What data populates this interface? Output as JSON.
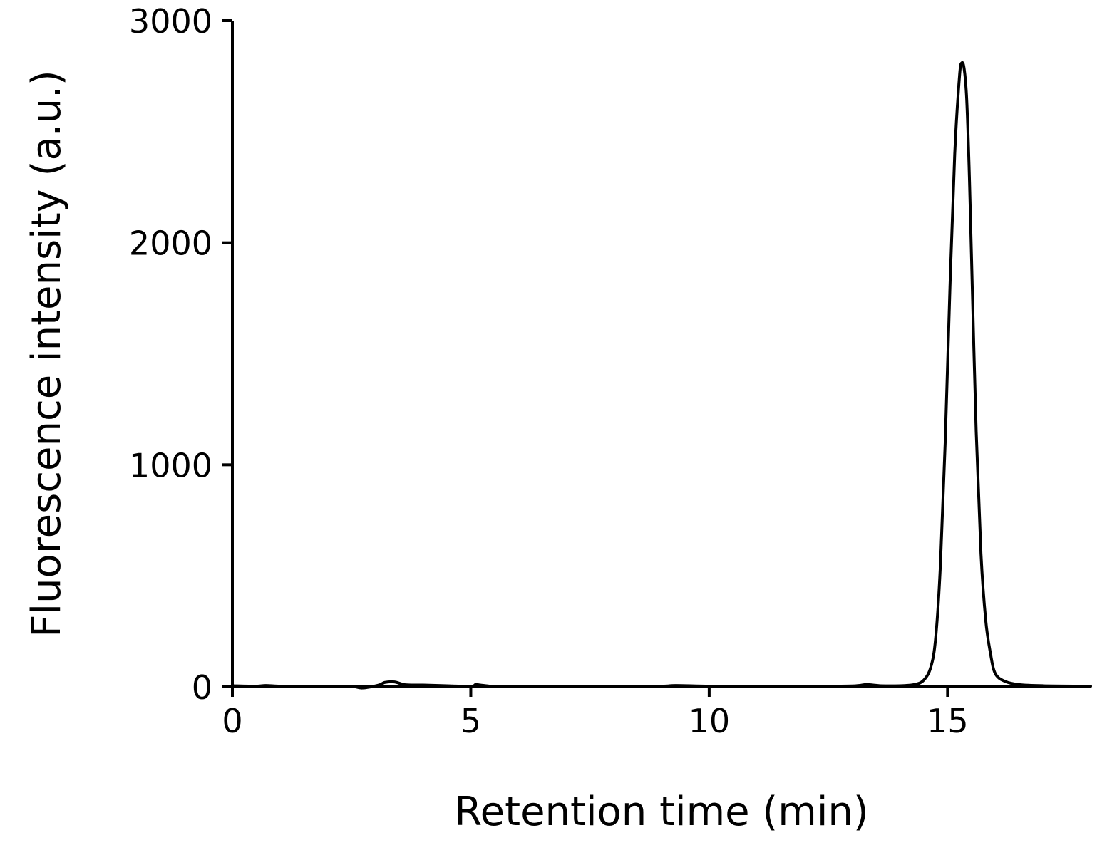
{
  "chart_data": {
    "type": "line",
    "xlabel": "Retention time (min)",
    "ylabel": "Fluorescence intensity (a.u.)",
    "xlim": [
      0,
      18
    ],
    "ylim": [
      0,
      3000
    ],
    "xticks": [
      "0",
      "5",
      "10",
      "15"
    ],
    "yticks": [
      "0",
      "1000",
      "2000",
      "3000"
    ],
    "grid": false,
    "legend": "none",
    "line_color": "#000000",
    "series": [
      {
        "x": [
          0,
          0.5,
          0.7,
          1.0,
          1.5,
          2.0,
          2.5,
          2.7,
          2.9,
          3.1,
          3.2,
          3.4,
          3.6,
          3.8,
          4.0,
          4.5,
          5.0,
          5.1,
          5.2,
          5.4,
          5.6,
          6.0,
          6.5,
          7.0,
          8.0,
          9.0,
          9.3,
          10.0,
          11.0,
          12.0,
          13.0,
          13.3,
          13.6,
          14.0,
          14.3,
          14.5,
          14.65,
          14.75,
          14.85,
          14.95,
          15.05,
          15.15,
          15.25,
          15.3,
          15.35,
          15.4,
          15.45,
          15.5,
          15.6,
          15.7,
          15.8,
          15.9,
          16.0,
          16.2,
          16.5,
          17.0,
          18.0
        ],
        "y": [
          5,
          3,
          6,
          3,
          2,
          3,
          2,
          -5,
          0,
          10,
          20,
          22,
          10,
          8,
          8,
          5,
          2,
          10,
          8,
          3,
          2,
          2,
          3,
          2,
          2,
          3,
          6,
          3,
          2,
          3,
          4,
          10,
          5,
          5,
          10,
          30,
          90,
          220,
          550,
          1100,
          1800,
          2400,
          2750,
          2810,
          2780,
          2650,
          2350,
          1950,
          1150,
          600,
          300,
          150,
          60,
          25,
          10,
          5,
          3
        ]
      }
    ]
  }
}
